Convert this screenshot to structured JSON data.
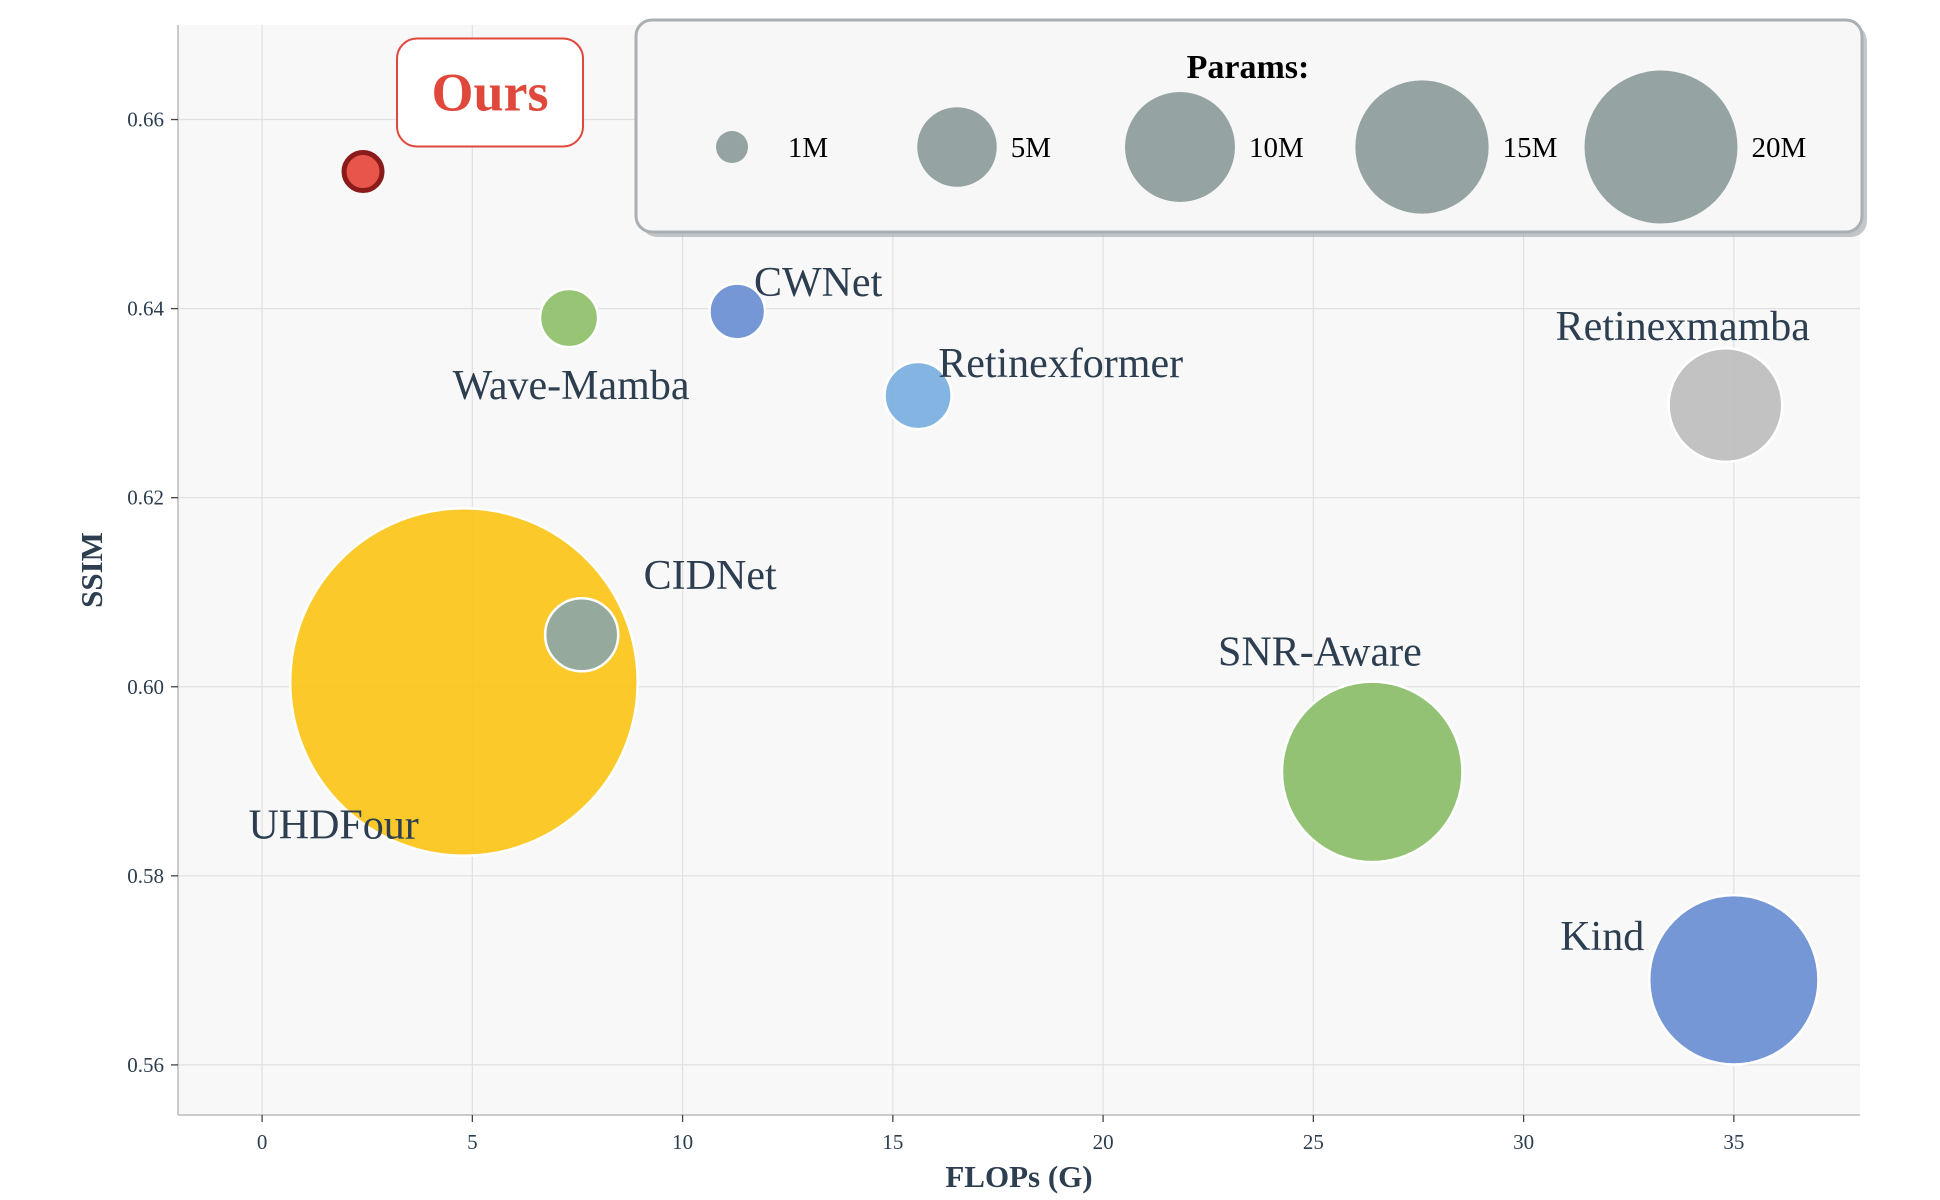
{
  "chart_data": {
    "type": "scatter",
    "xlabel": "FLOPs (G)",
    "ylabel": "SSIM",
    "xlim": [
      -2,
      38
    ],
    "ylim": [
      0.5547,
      0.67
    ],
    "xticks": [
      "0",
      "5",
      "10",
      "15",
      "20",
      "25",
      "30",
      "35"
    ],
    "yticks": [
      "0.56",
      "0.58",
      "0.60",
      "0.62",
      "0.64",
      "0.66"
    ],
    "grid": true,
    "size_legend": {
      "title": "Params:",
      "placement": "top-right",
      "entries": [
        {
          "label": "1M",
          "params": 1
        },
        {
          "label": "5M",
          "params": 5
        },
        {
          "label": "10M",
          "params": 10
        },
        {
          "label": "15M",
          "params": 15
        },
        {
          "label": "20M",
          "params": 20
        }
      ]
    },
    "points": [
      {
        "name": "UHDFour",
        "flops": 4.8,
        "ssim": 0.6005,
        "params": 43.0,
        "color": "#fcc419",
        "label_pos": "below-left"
      },
      {
        "name": "CIDNet",
        "flops": 7.6,
        "ssim": 0.6055,
        "params": 1.9,
        "color": "#8ca6a6",
        "label_pos": "above-right"
      },
      {
        "name": "Wave-Mamba",
        "flops": 7.3,
        "ssim": 0.639,
        "params": 1.2,
        "color": "#8fbf6a",
        "label_pos": "below"
      },
      {
        "name": "CWNet",
        "flops": 11.3,
        "ssim": 0.6397,
        "params": 1.1,
        "color": "#6a8ed2",
        "label_pos": "above-right"
      },
      {
        "name": "Retinexformer",
        "flops": 15.6,
        "ssim": 0.6308,
        "params": 1.6,
        "color": "#7aaee0",
        "label_pos": "above-right"
      },
      {
        "name": "Retinexmamba",
        "flops": 34.8,
        "ssim": 0.6298,
        "params": 4.6,
        "color": "#bdbdbd",
        "label_pos": "above-left"
      },
      {
        "name": "SNR-Aware",
        "flops": 26.4,
        "ssim": 0.591,
        "params": 11.6,
        "color": "#8bbd68",
        "label_pos": "above-left"
      },
      {
        "name": "Kind",
        "flops": 35.0,
        "ssim": 0.569,
        "params": 10.2,
        "color": "#6a8ed2",
        "label_pos": "left"
      },
      {
        "name": "Ours",
        "flops": 2.4,
        "ssim": 0.6545,
        "params": 0.15,
        "color": "#e8554a",
        "label_pos": "boxed-above-right"
      }
    ]
  },
  "colors": {
    "plot_bg": "#f8f8f8",
    "grid": "#e0e0e0",
    "text": "#2c3e50",
    "legend_bubble": "#95a3a3",
    "ours_accent": "#e0483b",
    "ours_edge": "#8b1a1a"
  }
}
